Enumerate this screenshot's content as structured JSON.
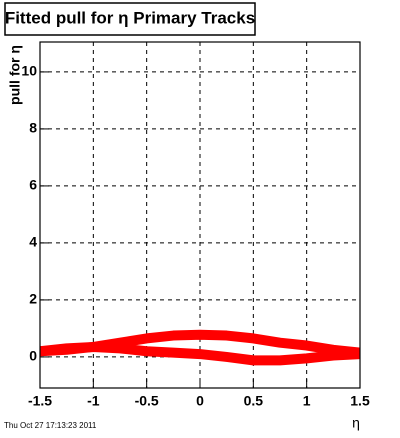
{
  "chart_data": {
    "type": "line",
    "title": "Fitted pull for η  Primary Tracks",
    "x_label": "η",
    "y_label": "pull for  η",
    "timestamp": "Thu Oct 27 17:13:23 2011",
    "x": [
      -1.5,
      -1.25,
      -1,
      -0.75,
      -0.5,
      -0.25,
      0,
      0.25,
      0.5,
      0.75,
      1,
      1.25,
      1.5
    ],
    "series": [
      {
        "color": "#ff0000",
        "values": [
          0.2,
          0.25,
          0.35,
          0.5,
          0.65,
          0.75,
          0.78,
          0.75,
          0.65,
          0.5,
          0.4,
          0.25,
          0.15
        ]
      },
      {
        "color": "#ff0000",
        "values": [
          0.2,
          0.3,
          0.35,
          0.3,
          0.2,
          0.15,
          0.1,
          0.0,
          -0.12,
          -0.12,
          -0.05,
          0.05,
          0.1
        ]
      }
    ],
    "xlim": [
      -1.5,
      1.5
    ],
    "xticks": [
      -1.5,
      -1,
      -0.5,
      0,
      0.5,
      1,
      1.5
    ],
    "ylim": [
      -1.09,
      11.05
    ],
    "yticks": [
      0,
      2,
      4,
      6,
      8,
      10
    ],
    "grid": true
  }
}
